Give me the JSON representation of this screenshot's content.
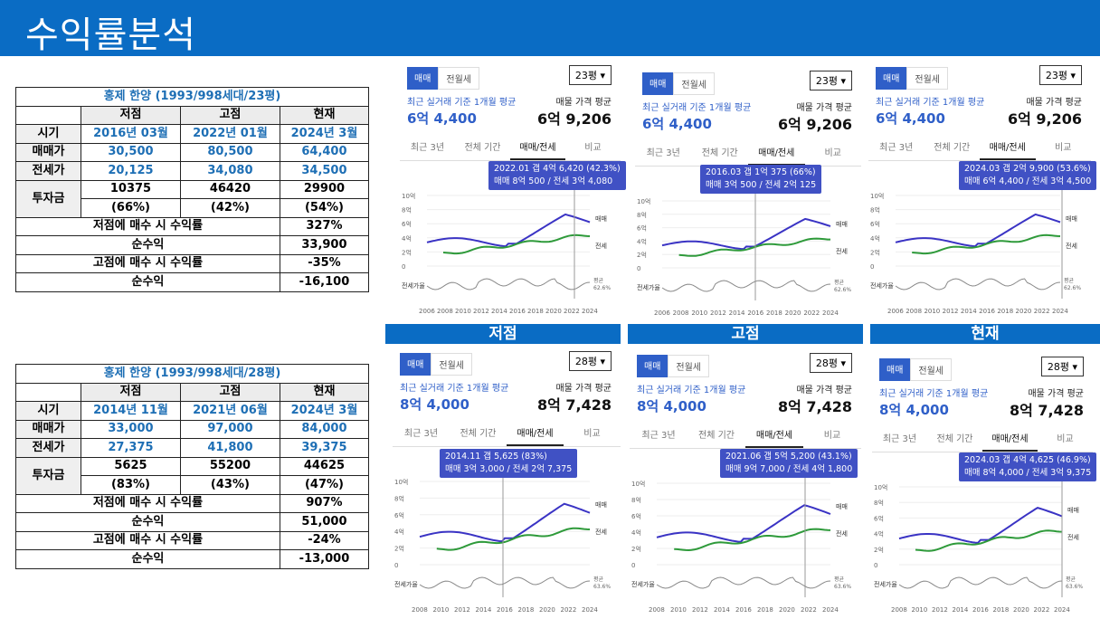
{
  "header": {
    "title": "수익률분석"
  },
  "tables": [
    {
      "title": "홍제 한양 (1993/998세대/23평)",
      "headers": [
        "시기",
        "저점",
        "고점",
        "현재"
      ],
      "rows": [
        {
          "label": "시기",
          "vals": [
            "2016년 03월",
            "2022년 01월",
            "2024년 3월"
          ]
        },
        {
          "label": "매매가",
          "vals": [
            "30,500",
            "80,500",
            "64,400"
          ]
        },
        {
          "label": "전세가",
          "vals": [
            "20,125",
            "34,080",
            "34,500"
          ]
        }
      ],
      "invest": {
        "label": "투자금",
        "a": [
          "10375",
          "46420",
          "29900"
        ],
        "b": [
          "(66%)",
          "(42%)",
          "(54%)"
        ]
      },
      "summary": [
        {
          "label": "저점에 매수 시 수익률",
          "value": "327%"
        },
        {
          "label": "순수익",
          "value": "33,900"
        },
        {
          "label": "고점에 매수 시 수익률",
          "value": "-35%"
        },
        {
          "label": "순수익",
          "value": "-16,100"
        }
      ]
    },
    {
      "title": "홍제 한양 (1993/998세대/28평)",
      "headers": [
        "시기",
        "저점",
        "고점",
        "현재"
      ],
      "rows": [
        {
          "label": "시기",
          "vals": [
            "2014년 11월",
            "2021년 06월",
            "2024년 3월"
          ]
        },
        {
          "label": "매매가",
          "vals": [
            "33,000",
            "97,000",
            "84,000"
          ]
        },
        {
          "label": "전세가",
          "vals": [
            "27,375",
            "41,800",
            "39,375"
          ]
        }
      ],
      "invest": {
        "label": "투자금",
        "a": [
          "5625",
          "55200",
          "44625"
        ],
        "b": [
          "(83%)",
          "(43%)",
          "(47%)"
        ]
      },
      "summary": [
        {
          "label": "저점에 매수 시 수익률",
          "value": "907%"
        },
        {
          "label": "순수익",
          "value": "51,000"
        },
        {
          "label": "고점에 매수 시 수익률",
          "value": "-24%"
        },
        {
          "label": "순수익",
          "value": "-13,000"
        }
      ]
    }
  ],
  "bands": [
    "저점",
    "고점",
    "현재"
  ],
  "common": {
    "tab_sale": "매매",
    "tab_rent": "전월세",
    "caption": "최근 실거래 기준 1개월 평균",
    "price_caption": "매물 가격 평균",
    "tabs": [
      "최근 3년",
      "전체 기간",
      "매매/전세",
      "비교"
    ],
    "legend_sale": "매매",
    "legend_jeonse": "전세",
    "ratio_label": "전세가율",
    "avg_label": "평균",
    "y_ticks": [
      "10억",
      "8억",
      "6억",
      "4억",
      "2억",
      "0"
    ]
  },
  "panels": [
    {
      "size": "23평",
      "recent": "6억 4,400",
      "listing": "6억 9,206",
      "tip1": "2022.01  갭 4억 6,420 (42.3%)",
      "tip2": "매매 8억 500 / 전세 3억 4,080",
      "avg_pct": "62.6%",
      "x_ticks": [
        "2006",
        "2008",
        "2010",
        "2012",
        "2014",
        "2016",
        "2018",
        "2020",
        "2022",
        "2024"
      ]
    },
    {
      "size": "23평",
      "recent": "6억 4,400",
      "listing": "6억 9,206",
      "tip1": "2016.03  갭 1억 375 (66%)",
      "tip2": "매매 3억 500 / 전세 2억 125",
      "avg_pct": "62.6%",
      "x_ticks": [
        "2006",
        "2008",
        "2010",
        "2012",
        "2014",
        "2016",
        "2018",
        "2020",
        "2022",
        "2024"
      ]
    },
    {
      "size": "23평",
      "recent": "6억 4,400",
      "listing": "6억 9,206",
      "tip1": "2024.03  갭 2억 9,900 (53.6%)",
      "tip2": "매매 6억 4,400 / 전세 3억 4,500",
      "avg_pct": "62.6%",
      "x_ticks": [
        "2006",
        "2008",
        "2010",
        "2012",
        "2014",
        "2016",
        "2018",
        "2020",
        "2022",
        "2024"
      ]
    },
    {
      "size": "28평",
      "recent": "8억 4,000",
      "listing": "8억 7,428",
      "tip1": "2014.11  갭 5,625 (83%)",
      "tip2": "매매 3억 3,000 / 전세 2억 7,375",
      "avg_pct": "63.6%",
      "x_ticks": [
        "2008",
        "2010",
        "2012",
        "2014",
        "2016",
        "2018",
        "2020",
        "2022",
        "2024"
      ]
    },
    {
      "size": "28평",
      "recent": "8억 4,000",
      "listing": "8억 7,428",
      "tip1": "2021.06  갭 5억 5,200 (43.1%)",
      "tip2": "매매 9억 7,000 / 전세 4억 1,800",
      "avg_pct": "63.6%",
      "x_ticks": [
        "2008",
        "2010",
        "2012",
        "2014",
        "2016",
        "2018",
        "2020",
        "2022",
        "2024"
      ]
    },
    {
      "size": "28평",
      "recent": "8억 4,000",
      "listing": "8억 7,428",
      "tip1": "2024.03  갭 4억 4,625 (46.9%)",
      "tip2": "매매 8억 4,000 / 전세 3억 9,375",
      "avg_pct": "63.6%",
      "x_ticks": [
        "2008",
        "2010",
        "2012",
        "2014",
        "2016",
        "2018",
        "2020",
        "2022",
        "2024"
      ]
    }
  ]
}
